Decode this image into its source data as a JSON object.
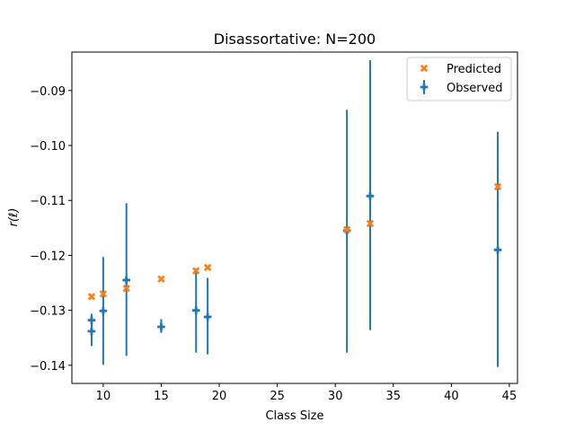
{
  "chart_data": {
    "type": "scatter",
    "title": "Disassortative: N=200",
    "xlabel": "Class Size",
    "ylabel": "r(ℓ)",
    "xlim": [
      7.3,
      45.7
    ],
    "ylim": [
      -0.1433,
      -0.083
    ],
    "xticks": [
      10,
      15,
      20,
      25,
      30,
      35,
      40,
      45
    ],
    "xtick_labels": [
      "10",
      "15",
      "20",
      "25",
      "30",
      "35",
      "40",
      "45"
    ],
    "yticks": [
      -0.14,
      -0.13,
      -0.12,
      -0.11,
      -0.1,
      -0.09
    ],
    "ytick_labels": [
      "−0.14",
      "−0.13",
      "−0.12",
      "−0.11",
      "−0.10",
      "−0.09"
    ],
    "grid": false,
    "legend_position": "top-right",
    "series": [
      {
        "name": "Predicted",
        "marker": "x-filled",
        "color": "#ff7f0e",
        "x": [
          9,
          10,
          12,
          15,
          18,
          19,
          31,
          33,
          44
        ],
        "y": [
          -0.1275,
          -0.127,
          -0.126,
          -0.1243,
          -0.1228,
          -0.1222,
          -0.1153,
          -0.1142,
          -0.1075
        ]
      },
      {
        "name": "Observed",
        "marker": "plus-errorbar",
        "color": "#1f77b4",
        "points": [
          {
            "x": 9,
            "y": -0.1318,
            "lo": -0.133,
            "hi": -0.1306
          },
          {
            "x": 9,
            "y": -0.1338,
            "lo": -0.1365,
            "hi": -0.1311
          },
          {
            "x": 10,
            "y": -0.1301,
            "lo": -0.1399,
            "hi": -0.1203
          },
          {
            "x": 12,
            "y": -0.1245,
            "lo": -0.1383,
            "hi": -0.1105
          },
          {
            "x": 15,
            "y": -0.133,
            "lo": -0.1341,
            "hi": -0.1316
          },
          {
            "x": 18,
            "y": -0.13,
            "lo": -0.1377,
            "hi": -0.1224
          },
          {
            "x": 19,
            "y": -0.1312,
            "lo": -0.138,
            "hi": -0.1241
          },
          {
            "x": 31,
            "y": -0.1155,
            "lo": -0.1377,
            "hi": -0.0935
          },
          {
            "x": 33,
            "y": -0.1092,
            "lo": -0.1336,
            "hi": -0.0845
          },
          {
            "x": 44,
            "y": -0.119,
            "lo": -0.1403,
            "hi": -0.0975
          }
        ]
      }
    ]
  }
}
